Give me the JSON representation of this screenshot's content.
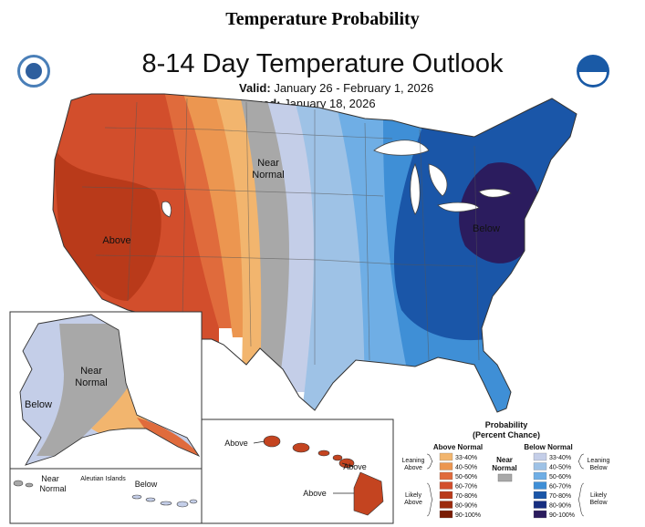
{
  "header": {
    "page_title": "Temperature Probability",
    "map_title": "8-14 Day Temperature Outlook",
    "valid_label": "Valid:",
    "valid_value": "January 26 - February 1, 2026",
    "issued_label": "Issued:",
    "issued_value": "January 18, 2026"
  },
  "logos": {
    "left": "doc-seal-icon",
    "right": "noaa-logo-icon"
  },
  "map_labels": {
    "conus_above": "Above",
    "conus_near_1": "Near",
    "conus_near_2": "Normal",
    "conus_below": "Below",
    "alaska_near_1": "Near",
    "alaska_near_2": "Normal",
    "alaska_below": "Below",
    "aleutian_near_1": "Near",
    "aleutian_near_2": "Normal",
    "aleutian_islands": "Aleutian Islands",
    "aleutian_below": "Below",
    "hawaii_above_1": "Above",
    "hawaii_above_2": "Above",
    "hawaii_above_3": "Above"
  },
  "legend": {
    "title": "Probability",
    "subtitle": "(Percent Chance)",
    "above_header": "Above Normal",
    "below_header": "Below Normal",
    "near_label_1": "Near",
    "near_label_2": "Normal",
    "leaning_above_1": "Leaning",
    "leaning_above_2": "Above",
    "likely_above_1": "Likely",
    "likely_above_2": "Above",
    "leaning_below_1": "Leaning",
    "leaning_below_2": "Below",
    "likely_below_1": "Likely",
    "likely_below_2": "Below",
    "near_color": "#a8a8a8",
    "above": [
      {
        "range": "33-40%",
        "color": "#f2b56e"
      },
      {
        "range": "40-50%",
        "color": "#ec9650"
      },
      {
        "range": "50-60%",
        "color": "#e06b3c"
      },
      {
        "range": "60-70%",
        "color": "#d24e2c"
      },
      {
        "range": "70-80%",
        "color": "#b93a1a"
      },
      {
        "range": "80-90%",
        "color": "#9c2a0c"
      },
      {
        "range": "90-100%",
        "color": "#7a1c04"
      }
    ],
    "below": [
      {
        "range": "33-40%",
        "color": "#c4cee8"
      },
      {
        "range": "40-50%",
        "color": "#9ec2e6"
      },
      {
        "range": "50-60%",
        "color": "#6faee5"
      },
      {
        "range": "60-70%",
        "color": "#3f8fd6"
      },
      {
        "range": "70-80%",
        "color": "#1a56a8"
      },
      {
        "range": "80-90%",
        "color": "#162e80"
      },
      {
        "range": "90-100%",
        "color": "#2b1c5e"
      }
    ]
  }
}
